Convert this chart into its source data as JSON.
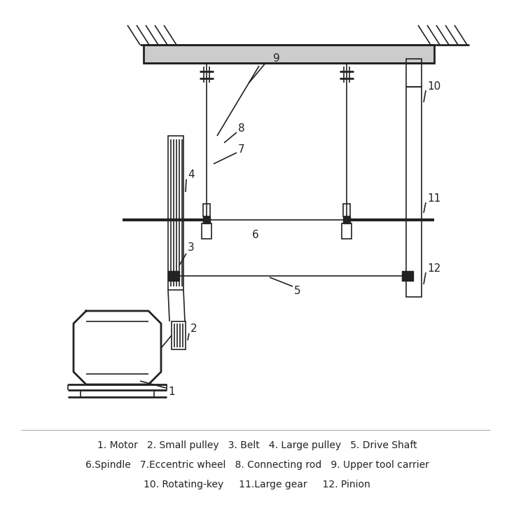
{
  "bg_color": "#ffffff",
  "line_color": "#222222",
  "text_color": "#222222",
  "legend_line1": "1. Motor   2. Small pulley   3. Belt   4. Large pulley   5. Drive Shaft",
  "legend_line2": "6.Spindle   7.Eccentric wheel   8. Connecting rod   9. Upper tool carrier",
  "legend_line3": "10. Rotating-key     11.Large gear     12. Pinion",
  "figsize": [
    7.34,
    7.24
  ],
  "dpi": 100
}
